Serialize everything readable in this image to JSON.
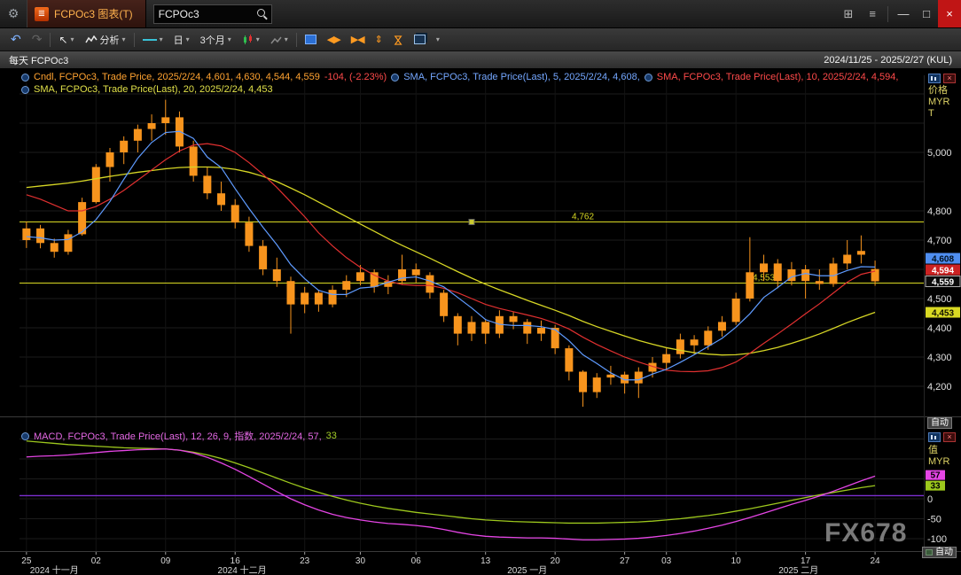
{
  "titlebar": {
    "tab_title": "FCPOc3 图表(T)",
    "search_value": "FCPOc3"
  },
  "toolbar": {
    "analysis": "分析",
    "period": "日",
    "range": "3个月"
  },
  "subheader": {
    "left": "每天 FCPOc3",
    "right": "2024/11/25 - 2025/2/27 (KUL)"
  },
  "legends": {
    "candle": "Cndl, FCPOc3, Trade Price, 2025/2/24, 4,601, 4,630, 4,544, 4,559",
    "candle_change": "-104, (-2.23%)",
    "sma5": "SMA, FCPOc3, Trade Price(Last), 5, 2025/2/24, 4,608,",
    "sma10": "SMA, FCPOc3, Trade Price(Last), 10, 2025/2/24, 4,594,",
    "sma20": "SMA, FCPOc3, Trade Price(Last), 20, 2025/2/24, 4,453",
    "macd": "MACD, FCPOc3, Trade Price(Last), 12, 26, 9, 指数, 2025/2/24, 57,",
    "macd_signal_value": "33"
  },
  "right_panel": {
    "price_axis_title": [
      "价格",
      "MYR",
      "T"
    ],
    "value_axis_title": [
      "值",
      "MYR"
    ],
    "auto_label": "自动"
  },
  "watermark": "FX678",
  "icons": {
    "wrench": "⚙",
    "tab_glyph": "≣",
    "dock": "⊞",
    "menu": "≡",
    "minimize": "—",
    "maximize": "□",
    "close": "×",
    "undo": "↶",
    "redo": "↷",
    "pointer": "↖",
    "dropdown": "▾",
    "arrows_h": "◀▶",
    "arrows_in": "▶◀",
    "arrows_v": "⇕",
    "hourglass": "⋈",
    "panel_close": "×"
  },
  "chart_data": {
    "type": "candlestick",
    "instrument": "FCPOc3",
    "title": "每天 FCPOc3",
    "date_range": "2024/11/25 - 2025/2/27 (KUL)",
    "price_panel": {
      "candle_color": "#f7941d",
      "ylim": [
        4097,
        5264
      ],
      "gridlines": [
        4200,
        4300,
        4400,
        4500,
        4600,
        4700,
        4800,
        4900,
        5000,
        5100,
        5200
      ],
      "axis_labels": [
        {
          "text": "5,000",
          "value": 5000
        },
        {
          "text": "4,800",
          "value": 4800
        },
        {
          "text": "4,700",
          "value": 4700
        },
        {
          "text": "4,500",
          "value": 4500
        },
        {
          "text": "4,400",
          "value": 4400
        },
        {
          "text": "4,300",
          "value": 4300
        },
        {
          "text": "4,200",
          "value": 4200
        }
      ],
      "badges": [
        {
          "text": "4,608",
          "value": 4608,
          "bg": "#4f8ef0",
          "fg": "#001020"
        },
        {
          "text": "4,594",
          "value": 4594,
          "bg": "#cc2222",
          "fg": "#ffffff"
        },
        {
          "text": "4,559",
          "value": 4559,
          "bg": "#0a0a0a",
          "fg": "#ffffff",
          "border": "#b0b0b0"
        },
        {
          "text": "4,453",
          "value": 4453,
          "bg": "#d9d923",
          "fg": "#101000"
        }
      ],
      "horizontal_lines": [
        {
          "value": 4762,
          "label": "4,762",
          "color": "#d9d923",
          "label_index": 40,
          "marker_index": 32
        },
        {
          "value": 4553,
          "label": "4,553",
          "color": "#d9d923",
          "label_index": 53
        }
      ]
    },
    "candles": [
      [
        4700,
        4764,
        4673,
        4740
      ],
      [
        4740,
        4752,
        4672,
        4690
      ],
      [
        4690,
        4705,
        4640,
        4660
      ],
      [
        4660,
        4735,
        4650,
        4720
      ],
      [
        4720,
        4845,
        4715,
        4830
      ],
      [
        4830,
        4960,
        4825,
        4950
      ],
      [
        4950,
        5015,
        4900,
        5000
      ],
      [
        5000,
        5055,
        4960,
        5040
      ],
      [
        5040,
        5095,
        5000,
        5080
      ],
      [
        5080,
        5130,
        5040,
        5100
      ],
      [
        5100,
        5180,
        5060,
        5120
      ],
      [
        5120,
        5140,
        5000,
        5020
      ],
      [
        5020,
        5040,
        4900,
        4920
      ],
      [
        4920,
        4950,
        4840,
        4860
      ],
      [
        4860,
        4900,
        4800,
        4820
      ],
      [
        4820,
        4840,
        4740,
        4760
      ],
      [
        4760,
        4780,
        4660,
        4680
      ],
      [
        4680,
        4700,
        4580,
        4600
      ],
      [
        4600,
        4640,
        4540,
        4560
      ],
      [
        4560,
        4575,
        4380,
        4480
      ],
      [
        4480,
        4540,
        4450,
        4520
      ],
      [
        4520,
        4530,
        4455,
        4480
      ],
      [
        4480,
        4545,
        4470,
        4530
      ],
      [
        4530,
        4580,
        4505,
        4560
      ],
      [
        4560,
        4615,
        4545,
        4590
      ],
      [
        4590,
        4600,
        4520,
        4540
      ],
      [
        4540,
        4580,
        4515,
        4560
      ],
      [
        4560,
        4650,
        4550,
        4600
      ],
      [
        4600,
        4620,
        4555,
        4580
      ],
      [
        4580,
        4590,
        4500,
        4520
      ],
      [
        4520,
        4530,
        4420,
        4440
      ],
      [
        4440,
        4450,
        4340,
        4380
      ],
      [
        4380,
        4440,
        4355,
        4420
      ],
      [
        4420,
        4430,
        4345,
        4380
      ],
      [
        4380,
        4460,
        4365,
        4440
      ],
      [
        4440,
        4455,
        4395,
        4420
      ],
      [
        4420,
        4430,
        4345,
        4380
      ],
      [
        4380,
        4425,
        4355,
        4400
      ],
      [
        4400,
        4410,
        4310,
        4330
      ],
      [
        4330,
        4340,
        4220,
        4250
      ],
      [
        4250,
        4255,
        4130,
        4180
      ],
      [
        4180,
        4245,
        4160,
        4230
      ],
      [
        4230,
        4270,
        4205,
        4240
      ],
      [
        4240,
        4250,
        4175,
        4210
      ],
      [
        4210,
        4265,
        4160,
        4250
      ],
      [
        4250,
        4300,
        4230,
        4280
      ],
      [
        4280,
        4330,
        4255,
        4310
      ],
      [
        4310,
        4380,
        4295,
        4360
      ],
      [
        4360,
        4375,
        4310,
        4340
      ],
      [
        4340,
        4405,
        4325,
        4390
      ],
      [
        4390,
        4440,
        4370,
        4420
      ],
      [
        4420,
        4520,
        4410,
        4500
      ],
      [
        4500,
        4710,
        4490,
        4590
      ],
      [
        4590,
        4650,
        4560,
        4620
      ],
      [
        4620,
        4635,
        4535,
        4560
      ],
      [
        4560,
        4625,
        4545,
        4600
      ],
      [
        4600,
        4615,
        4500,
        4560
      ],
      [
        4560,
        4600,
        4530,
        4550
      ],
      [
        4550,
        4640,
        4540,
        4620
      ],
      [
        4620,
        4700,
        4600,
        4650
      ],
      [
        4650,
        4716,
        4620,
        4663
      ],
      [
        4601,
        4630,
        4544,
        4559
      ]
    ],
    "overlays": {
      "sma5": {
        "color": "#5f9bff",
        "period": 5,
        "last": 4608,
        "values": [
          4712,
          4708,
          4700,
          4702,
          4728,
          4770,
          4832,
          4908,
          4980,
          5034,
          5068,
          5072,
          5048,
          4984,
          4948,
          4876,
          4808,
          4744,
          4684,
          4616,
          4568,
          4528,
          4514,
          4514,
          4536,
          4540,
          4556,
          4570,
          4574,
          4560,
          4540,
          4504,
          4468,
          4428,
          4412,
          4408,
          4408,
          4404,
          4394,
          4356,
          4308,
          4278,
          4246,
          4222,
          4222,
          4242,
          4258,
          4282,
          4308,
          4336,
          4364,
          4402,
          4448,
          4504,
          4538,
          4574,
          4586,
          4578,
          4578,
          4596,
          4609,
          4608
        ]
      },
      "sma10": {
        "color": "#e03030",
        "period": 10,
        "last": 4594,
        "values": [
          4855,
          4840,
          4820,
          4800,
          4800,
          4815,
          4840,
          4870,
          4905,
          4940,
          4975,
          5005,
          5025,
          5030,
          5022,
          5000,
          4965,
          4925,
          4880,
          4830,
          4780,
          4725,
          4680,
          4640,
          4607,
          4580,
          4560,
          4548,
          4545,
          4545,
          4535,
          4520,
          4500,
          4480,
          4466,
          4455,
          4444,
          4432,
          4416,
          4396,
          4368,
          4343,
          4321,
          4300,
          4283,
          4268,
          4255,
          4251,
          4250,
          4253,
          4264,
          4283,
          4313,
          4347,
          4379,
          4413,
          4448,
          4482,
          4519,
          4556,
          4583,
          4594
        ]
      },
      "sma20": {
        "color": "#d6d625",
        "period": 20,
        "last": 4453,
        "values": [
          4880,
          4885,
          4890,
          4895,
          4902,
          4910,
          4918,
          4925,
          4932,
          4938,
          4944,
          4948,
          4950,
          4950,
          4948,
          4942,
          4932,
          4918,
          4900,
          4878,
          4855,
          4830,
          4805,
          4780,
          4755,
          4730,
          4705,
          4682,
          4660,
          4638,
          4615,
          4592,
          4570,
          4549,
          4530,
          4512,
          4494,
          4477,
          4460,
          4442,
          4422,
          4404,
          4388,
          4372,
          4357,
          4344,
          4332,
          4323,
          4315,
          4310,
          4307,
          4308,
          4313,
          4322,
          4333,
          4347,
          4362,
          4379,
          4398,
          4418,
          4436,
          4453
        ]
      }
    },
    "macd_panel": {
      "params": "12, 26, 9",
      "gridlines": [
        150,
        100,
        50,
        0,
        -50,
        -100
      ],
      "axis_labels": [
        {
          "text": "0",
          "value": 0
        },
        {
          "text": "-50",
          "value": -50
        },
        {
          "text": "-100",
          "value": -100
        }
      ],
      "zero_line": {
        "value": 8,
        "color": "#7d2fd0"
      },
      "badges": [
        {
          "text": "57",
          "value": 57,
          "bg": "#e545e5",
          "fg": "#000000"
        },
        {
          "text": "33",
          "value": 33,
          "bg": "#9dc81d",
          "fg": "#000000"
        }
      ],
      "macd": {
        "color": "#e545e5",
        "last": 57,
        "values": [
          105,
          107,
          108,
          110,
          113,
          116,
          119,
          121,
          123,
          124,
          125,
          122,
          115,
          104,
          90,
          74,
          56,
          37,
          18,
          0,
          -15,
          -28,
          -39,
          -47,
          -53,
          -58,
          -62,
          -64,
          -67,
          -71,
          -77,
          -84,
          -90,
          -94,
          -96,
          -97,
          -98,
          -98,
          -99,
          -101,
          -103,
          -103,
          -102,
          -101,
          -99,
          -96,
          -92,
          -87,
          -81,
          -74,
          -66,
          -57,
          -47,
          -36,
          -25,
          -14,
          -4,
          7,
          19,
          32,
          45,
          57
        ]
      },
      "signal": {
        "color": "#9dc81d",
        "last": 33,
        "values": [
          145,
          142,
          139,
          136,
          134,
          132,
          130,
          128,
          127,
          126,
          125,
          122,
          117,
          110,
          101,
          90,
          78,
          65,
          52,
          39,
          27,
          16,
          6,
          -3,
          -11,
          -18,
          -24,
          -29,
          -34,
          -38,
          -42,
          -46,
          -50,
          -53,
          -55,
          -57,
          -58,
          -59,
          -60,
          -61,
          -61,
          -61,
          -60,
          -59,
          -58,
          -56,
          -53,
          -50,
          -46,
          -42,
          -37,
          -31,
          -25,
          -18,
          -11,
          -4,
          3,
          10,
          16,
          22,
          28,
          33
        ]
      }
    },
    "x_ticks": [
      {
        "i": 0,
        "label": "25"
      },
      {
        "i": 5,
        "label": "02"
      },
      {
        "i": 10,
        "label": "09"
      },
      {
        "i": 15,
        "label": "16"
      },
      {
        "i": 20,
        "label": "23"
      },
      {
        "i": 24,
        "label": "30"
      },
      {
        "i": 28,
        "label": "06"
      },
      {
        "i": 33,
        "label": "13"
      },
      {
        "i": 38,
        "label": "20"
      },
      {
        "i": 43,
        "label": "27"
      },
      {
        "i": 46,
        "label": "03"
      },
      {
        "i": 51,
        "label": "10"
      },
      {
        "i": 56,
        "label": "17"
      },
      {
        "i": 61,
        "label": "24"
      }
    ],
    "x_months": [
      {
        "i": 2,
        "label": "2024 十一月"
      },
      {
        "i": 15.5,
        "label": "2024 十二月"
      },
      {
        "i": 36,
        "label": "2025 一月"
      },
      {
        "i": 55.5,
        "label": "2025 二月"
      }
    ]
  }
}
